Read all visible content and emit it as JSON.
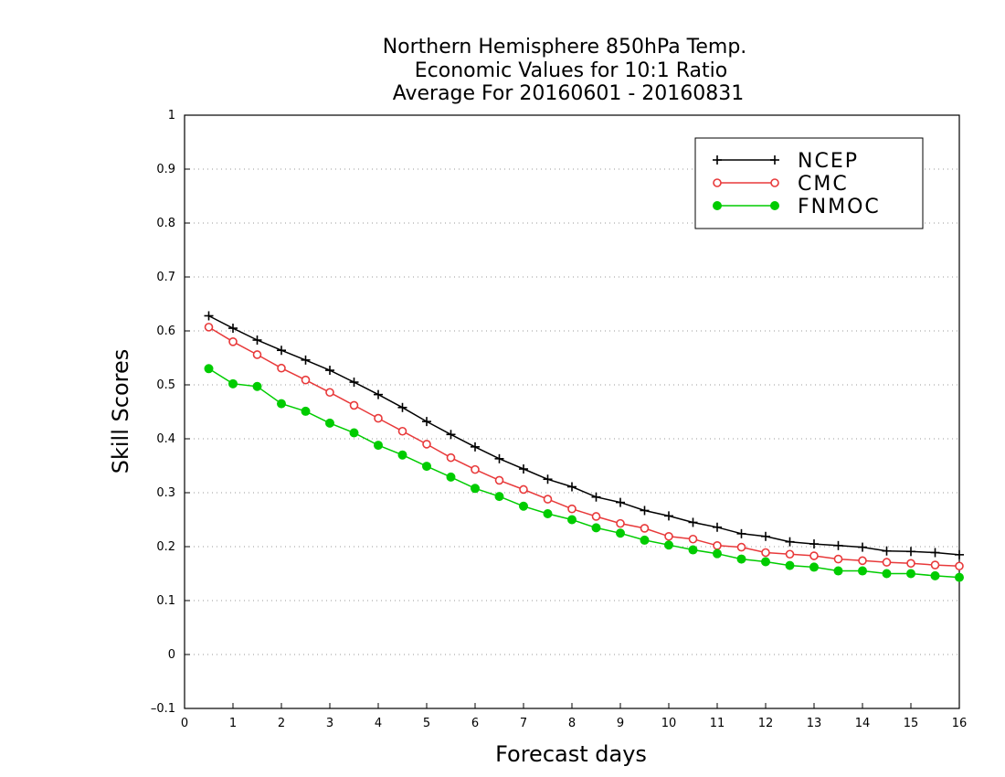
{
  "chart_data": {
    "type": "line",
    "title": [
      "Northern Hemisphere 850hPa Temp.",
      "Economic Values for 10:1 Ratio",
      "Average For 20160601 - 20160831"
    ],
    "xlabel": "Forecast days",
    "ylabel": "Skill Scores",
    "xlim": [
      0,
      16
    ],
    "ylim": [
      -0.1,
      1
    ],
    "xticks": [
      0,
      1,
      2,
      3,
      4,
      5,
      6,
      7,
      8,
      9,
      10,
      11,
      12,
      13,
      14,
      15,
      16
    ],
    "xtick_labels": [
      "0",
      "1",
      "2",
      "3",
      "4",
      "5",
      "6",
      "7",
      "8",
      "9",
      "10",
      "11",
      "12",
      "13",
      "14",
      "15",
      "16"
    ],
    "yticks": [
      -0.1,
      0,
      0.1,
      0.2,
      0.3,
      0.4,
      0.5,
      0.6,
      0.7,
      0.8,
      0.9,
      1
    ],
    "ytick_labels": [
      "–0.1",
      "0",
      "0.1",
      "0.2",
      "0.3",
      "0.4",
      "0.5",
      "0.6",
      "0.7",
      "0.8",
      "0.9",
      "1"
    ],
    "grid": "horizontal dotted",
    "legend_position": "top-right",
    "x": [
      0.5,
      1,
      1.5,
      2,
      2.5,
      3,
      3.5,
      4,
      4.5,
      5,
      5.5,
      6,
      6.5,
      7,
      7.5,
      8,
      8.5,
      9,
      9.5,
      10,
      10.5,
      11,
      11.5,
      12,
      12.5,
      13,
      13.5,
      14,
      14.5,
      15,
      15.5,
      16
    ],
    "series": [
      {
        "name": "NCEP",
        "color": "#000000",
        "marker": "plus",
        "values": [
          0.628,
          0.605,
          0.583,
          0.564,
          0.546,
          0.527,
          0.505,
          0.482,
          0.458,
          0.432,
          0.408,
          0.385,
          0.363,
          0.344,
          0.325,
          0.311,
          0.292,
          0.282,
          0.267,
          0.257,
          0.245,
          0.236,
          0.224,
          0.219,
          0.209,
          0.205,
          0.202,
          0.199,
          0.192,
          0.191,
          0.189,
          0.185
        ]
      },
      {
        "name": "CMC",
        "color": "#e8393a",
        "marker": "open-circle",
        "values": [
          0.607,
          0.58,
          0.556,
          0.531,
          0.509,
          0.486,
          0.462,
          0.438,
          0.414,
          0.39,
          0.365,
          0.343,
          0.323,
          0.306,
          0.288,
          0.27,
          0.256,
          0.243,
          0.234,
          0.219,
          0.214,
          0.202,
          0.199,
          0.189,
          0.186,
          0.183,
          0.177,
          0.174,
          0.171,
          0.169,
          0.166,
          0.164
        ]
      },
      {
        "name": "FNMOC",
        "color": "#00cc00",
        "marker": "filled-circle",
        "values": [
          0.53,
          0.502,
          0.497,
          0.465,
          0.451,
          0.429,
          0.411,
          0.388,
          0.37,
          0.349,
          0.329,
          0.308,
          0.293,
          0.275,
          0.261,
          0.25,
          0.235,
          0.225,
          0.212,
          0.203,
          0.194,
          0.187,
          0.177,
          0.172,
          0.165,
          0.162,
          0.155,
          0.155,
          0.15,
          0.15,
          0.146,
          0.143
        ]
      }
    ]
  }
}
